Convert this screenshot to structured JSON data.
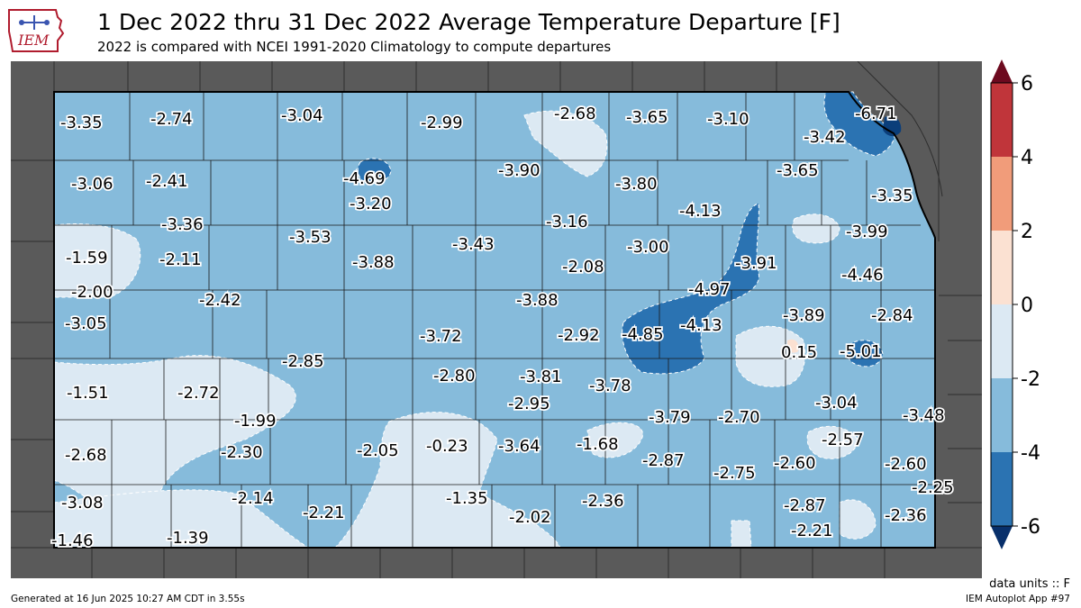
{
  "header": {
    "title": "1 Dec 2022 thru 31 Dec 2022 Average Temperature Departure [F]",
    "subtitle": "2022 is compared with NCEI 1991-2020 Climatology to compute departures"
  },
  "logo": {
    "text": "IEM"
  },
  "colorbar": {
    "ticks": [
      "6",
      "4",
      "2",
      "0",
      "-2",
      "-4",
      "-6"
    ],
    "colors": {
      "above_4": "#c0353a",
      "2_to_4": "#f19c7a",
      "0_to_2": "#fbe1d2",
      "m2_to_0": "#dce9f3",
      "m4_to_m2": "#86bbdb",
      "m6_to_m4": "#2b73b2",
      "below_m6": "#0b3e7a",
      "top_arrow": "#6d0a1f",
      "bottom_arrow": "#08306b"
    }
  },
  "map": {
    "background_color": "#5a5a5a",
    "values": [
      {
        "v": "-3.35"
      },
      {
        "v": "-2.74"
      },
      {
        "v": "-3.04"
      },
      {
        "v": "-2.99"
      },
      {
        "v": "-2.68"
      },
      {
        "v": "-3.65"
      },
      {
        "v": "-3.10"
      },
      {
        "v": "-6.71"
      },
      {
        "v": "-3.42"
      },
      {
        "v": "-3.06"
      },
      {
        "v": "-2.41"
      },
      {
        "v": "-4.69"
      },
      {
        "v": "-3.20"
      },
      {
        "v": "-3.90"
      },
      {
        "v": "-3.80"
      },
      {
        "v": "-3.65"
      },
      {
        "v": "-3.35"
      },
      {
        "v": "-4.13"
      },
      {
        "v": "-3.36"
      },
      {
        "v": "-1.59"
      },
      {
        "v": "-2.11"
      },
      {
        "v": "-3.53"
      },
      {
        "v": "-3.43"
      },
      {
        "v": "-3.16"
      },
      {
        "v": "-3.00"
      },
      {
        "v": "-3.99"
      },
      {
        "v": "-3.88"
      },
      {
        "v": "-2.08"
      },
      {
        "v": "-3.91"
      },
      {
        "v": "-4.46"
      },
      {
        "v": "-2.00"
      },
      {
        "v": "-2.42"
      },
      {
        "v": "-4.97"
      },
      {
        "v": "-3.88"
      },
      {
        "v": "-3.05"
      },
      {
        "v": "-3.72"
      },
      {
        "v": "-2.92"
      },
      {
        "v": "-4.85"
      },
      {
        "v": "-4.13"
      },
      {
        "v": "-3.89"
      },
      {
        "v": "-2.84"
      },
      {
        "v": "0.15"
      },
      {
        "v": "-5.01"
      },
      {
        "v": "-2.85"
      },
      {
        "v": "-1.51"
      },
      {
        "v": "-2.72"
      },
      {
        "v": "-2.80"
      },
      {
        "v": "-3.81"
      },
      {
        "v": "-3.78"
      },
      {
        "v": "-2.95"
      },
      {
        "v": "-3.04"
      },
      {
        "v": "-1.99"
      },
      {
        "v": "-3.79"
      },
      {
        "v": "-2.70"
      },
      {
        "v": "-3.48"
      },
      {
        "v": "-2.30"
      },
      {
        "v": "-2.05"
      },
      {
        "v": "-0.23"
      },
      {
        "v": "-3.64"
      },
      {
        "v": "-1.68"
      },
      {
        "v": "-2.57"
      },
      {
        "v": "-2.68"
      },
      {
        "v": "-2.87"
      },
      {
        "v": "-2.60"
      },
      {
        "v": "-2.60"
      },
      {
        "v": "-2.75"
      },
      {
        "v": "-2.14"
      },
      {
        "v": "-1.35"
      },
      {
        "v": "-2.36"
      },
      {
        "v": "-2.25"
      },
      {
        "v": "-3.08"
      },
      {
        "v": "-2.21"
      },
      {
        "v": "-2.02"
      },
      {
        "v": "-2.87"
      },
      {
        "v": "-2.36"
      },
      {
        "v": "-1.46"
      },
      {
        "v": "-1.39"
      },
      {
        "v": "-2.21"
      }
    ]
  },
  "footer": {
    "units": "data units :: F",
    "generated": "Generated at 16 Jun 2025 10:27 AM CDT in 3.55s",
    "app": "IEM Autoplot App #97"
  }
}
